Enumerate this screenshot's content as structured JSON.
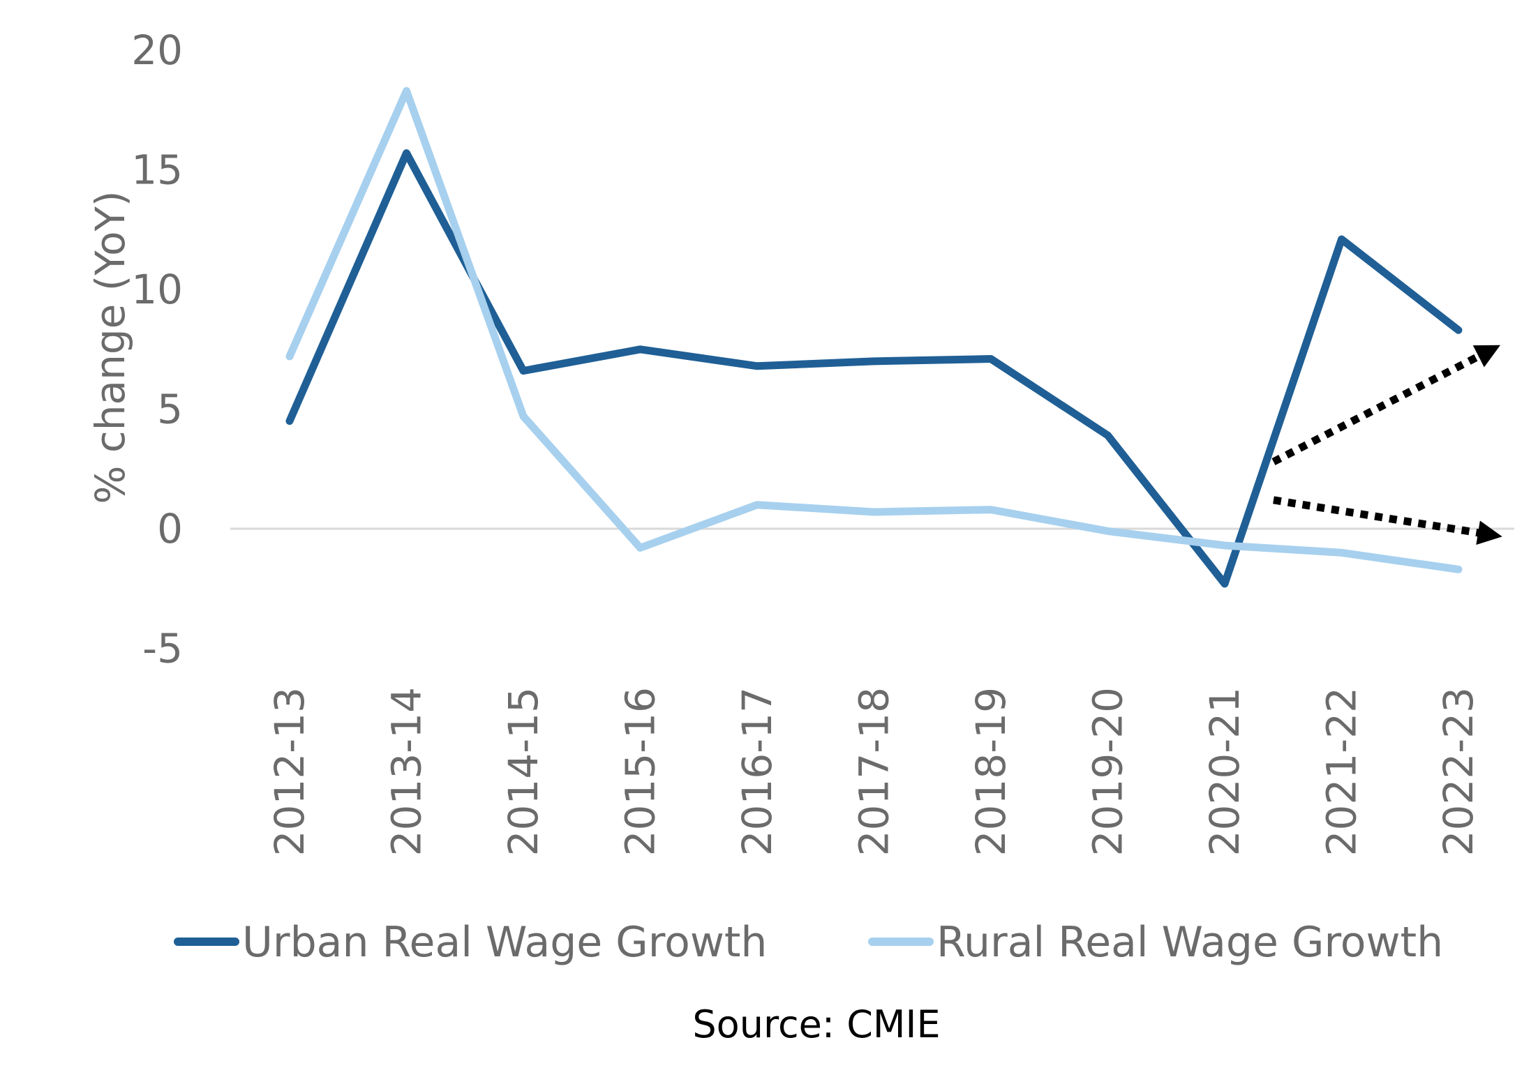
{
  "chart_data": {
    "type": "line",
    "categories": [
      "2012-13",
      "2013-14",
      "2014-15",
      "2015-16",
      "2016-17",
      "2017-18",
      "2018-19",
      "2019-20",
      "2020-21",
      "2021-22",
      "2022-23"
    ],
    "series": [
      {
        "name": "Urban Real Wage Growth",
        "color": "#1f5f95",
        "values": [
          4.5,
          15.7,
          6.6,
          7.5,
          6.8,
          7.0,
          7.1,
          3.9,
          -2.3,
          12.1,
          8.3
        ]
      },
      {
        "name": "Rural Real Wage Growth",
        "color": "#a7d0ee",
        "values": [
          7.2,
          18.3,
          4.7,
          -0.8,
          1.0,
          0.7,
          0.8,
          -0.1,
          -0.7,
          -1.0,
          -1.7
        ]
      }
    ],
    "ylabel": "% change (YoY)",
    "ylim": [
      -5,
      20
    ],
    "yticks": [
      -5,
      0,
      5,
      10,
      15,
      20
    ],
    "grid": false,
    "legend": "bottom",
    "source": "Source: CMIE",
    "annotations": [
      {
        "type": "dotted-arrow",
        "color": "#000000",
        "from": {
          "x": "2020-21",
          "y": 2.8
        },
        "to": {
          "x": "2022-23",
          "y": 7.3
        }
      },
      {
        "type": "dotted-arrow",
        "color": "#000000",
        "from": {
          "x": "2020-21",
          "y": 1.2
        },
        "to": {
          "x": "2022-23",
          "y": -0.2
        }
      }
    ]
  }
}
